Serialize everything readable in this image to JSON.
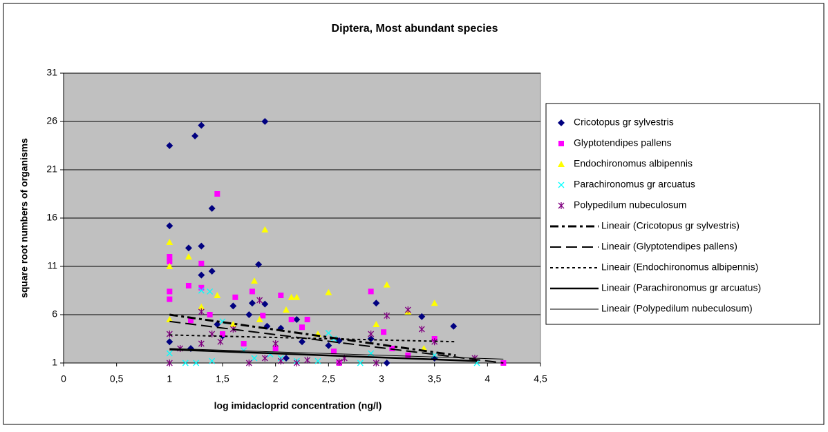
{
  "chart_data": {
    "type": "scatter",
    "title": "Diptera, Most abundant species",
    "xlabel": "log imidacloprid concentration (ng/l)",
    "ylabel": "square root numbers of organisms",
    "xlim": [
      0,
      4.5
    ],
    "ylim": [
      1,
      31
    ],
    "xticks": [
      0,
      {
        "value": 0.5,
        "label": "0,5"
      },
      1,
      {
        "value": 1.5,
        "label": "1,5"
      },
      2,
      {
        "value": 2.5,
        "label": "2,5"
      },
      3,
      {
        "value": 3.5,
        "label": "3,5"
      },
      4,
      {
        "value": 4.5,
        "label": "4,5"
      }
    ],
    "yticks": [
      1,
      6,
      11,
      16,
      21,
      26,
      31
    ],
    "grid": true,
    "legend": "right",
    "series": [
      {
        "name": "Cricotopus gr sylvestris",
        "color": "#000080",
        "marker": "diamond",
        "x": [
          1,
          1,
          1.24,
          1.3,
          1.9,
          1.18,
          1.3,
          1.4,
          1.4,
          1.3,
          1.84,
          1.6,
          1.78,
          1.9,
          1.75,
          1.92,
          2.05,
          2.2,
          2.25,
          2.5,
          2.6,
          2.95,
          3.38,
          3.68,
          3.5,
          1,
          1.2,
          1.45,
          2.1,
          3.05,
          1.5,
          2.9
        ],
        "values": [
          23.5,
          15.2,
          24.5,
          25.6,
          26,
          12.9,
          13.1,
          17,
          10.5,
          10.1,
          11.2,
          6.9,
          7.2,
          7.1,
          6,
          4.8,
          4.6,
          5.5,
          3.2,
          2.8,
          3.3,
          7.2,
          5.8,
          4.8,
          1.5,
          3.2,
          2.5,
          5,
          1.5,
          1,
          3.8,
          3.5
        ]
      },
      {
        "name": "Glyptotendipes pallens",
        "color": "#ff00ff",
        "marker": "square",
        "x": [
          1,
          1,
          1,
          1,
          1.45,
          1.3,
          1.18,
          1.3,
          1.38,
          1.62,
          1.78,
          2.05,
          2.15,
          2.25,
          2.3,
          2.9,
          3.02,
          3.5,
          4.15,
          1.2,
          1.88,
          2.55,
          2.6,
          3.1,
          3.25,
          1.5,
          1.7,
          2
        ],
        "values": [
          12,
          11.5,
          8.4,
          7.6,
          18.5,
          11.3,
          9,
          8.8,
          6,
          7.8,
          8.4,
          8,
          5.5,
          4.7,
          5.5,
          8.4,
          4.2,
          3.5,
          1,
          5.4,
          5.9,
          2.2,
          1,
          2.5,
          1.8,
          4,
          3,
          2.5
        ]
      },
      {
        "name": "Endochironomus albipennis",
        "color": "#ffff00",
        "marker": "triangle",
        "x": [
          1,
          1,
          1.18,
          1.45,
          1.9,
          1.8,
          2.15,
          2.2,
          2.5,
          3.05,
          3.5,
          2.95,
          3.25,
          1.3,
          1.6,
          2.4,
          3.4,
          1,
          1.85,
          2.1
        ],
        "values": [
          13.5,
          11,
          12,
          8,
          14.8,
          9.5,
          7.8,
          7.8,
          8.3,
          9.1,
          7.2,
          5,
          6.3,
          6.8,
          5,
          4,
          2.5,
          5.5,
          5.5,
          6.5
        ]
      },
      {
        "name": "Parachironomus gr arcuatus",
        "color": "#00ffff",
        "marker": "x",
        "x": [
          1.3,
          1.38,
          1,
          1.15,
          1.4,
          1.7,
          1.8,
          2.2,
          2.5,
          2.55,
          2.8,
          2.9,
          3.5,
          3.9,
          1.5,
          2.05,
          2.4,
          1.25,
          1.95
        ],
        "values": [
          8.5,
          8.4,
          2,
          1,
          1.2,
          2.3,
          1.5,
          1.2,
          4.1,
          3.5,
          1,
          2,
          1.8,
          1,
          5.3,
          1.5,
          1.2,
          1,
          1.9
        ]
      },
      {
        "name": "Polypedilum nubeculosum",
        "color": "#800080",
        "marker": "asterisk",
        "x": [
          1,
          1,
          1.3,
          1.3,
          1.4,
          1.48,
          1.85,
          1.75,
          1.9,
          2,
          2.05,
          2.3,
          2.6,
          2.65,
          2.9,
          3.05,
          3.25,
          3.38,
          3.5,
          3.88,
          2.95,
          1.6,
          2.2,
          1.1
        ],
        "values": [
          1,
          4,
          6.3,
          3,
          4,
          3.2,
          7.5,
          1,
          1.5,
          3,
          1.2,
          1.3,
          1.1,
          1.5,
          4,
          5.9,
          6.5,
          4.5,
          3.2,
          1.5,
          1,
          4.5,
          1,
          2.5
        ]
      },
      {
        "name": "Lineair (Cricotopus gr sylvestris)",
        "color": "#000000",
        "line": "dashdot",
        "x": [
          1,
          3.7
        ],
        "values": [
          6,
          1.8
        ]
      },
      {
        "name": "Lineair (Glyptotendipes pallens)",
        "color": "#000000",
        "line": "dash",
        "x": [
          1,
          4.15
        ],
        "values": [
          5.3,
          1
        ]
      },
      {
        "name": "Lineair (Endochironomus albipennis)",
        "color": "#000000",
        "line": "dot",
        "x": [
          1,
          3.7
        ],
        "values": [
          3.9,
          3.2
        ]
      },
      {
        "name": "Lineair (Parachironomus gr arcuatus)",
        "color": "#000000",
        "line": "solid-thick",
        "x": [
          1,
          3.9
        ],
        "values": [
          2.4,
          1.2
        ]
      },
      {
        "name": "Lineair (Polypedilum nubeculosum)",
        "color": "#000000",
        "line": "solid-thin",
        "x": [
          1,
          4.15
        ],
        "values": [
          2.5,
          1.4
        ]
      }
    ]
  }
}
